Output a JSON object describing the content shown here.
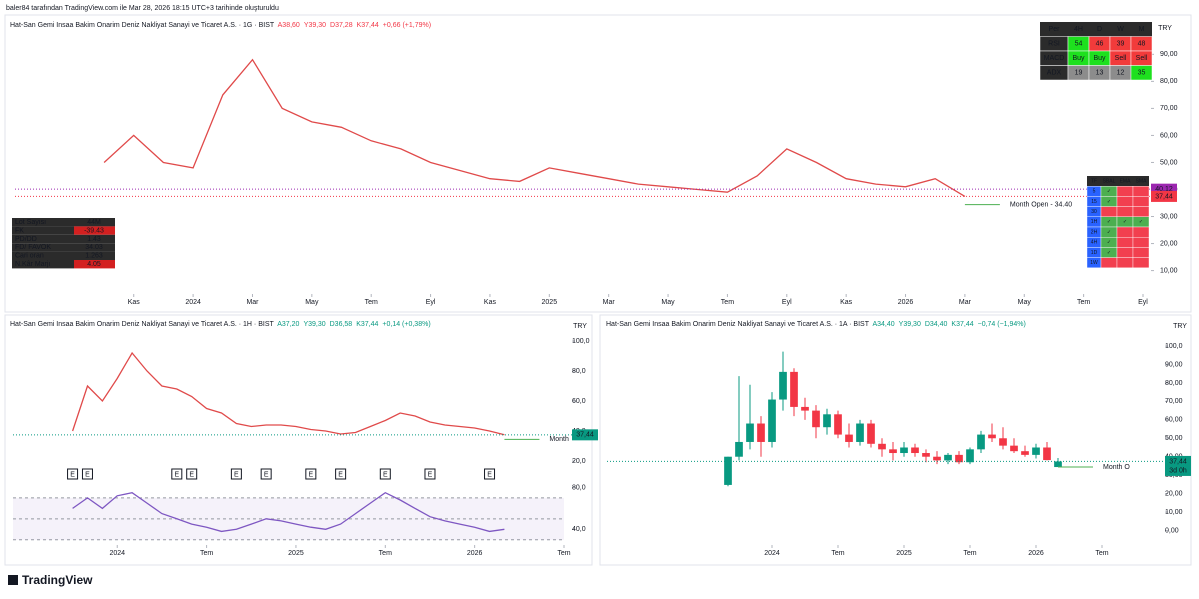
{
  "header": "baler84 tarafından TradingView.com ile Mar 28, 2026 18:15 UTC+3 tarihinde oluşturuldu",
  "footer": "TradingView",
  "indicator_table": {
    "header": [
      "Per",
      "4H",
      "D",
      "W",
      "M"
    ],
    "rows": [
      [
        "RSI",
        "54",
        "46",
        "39",
        "48"
      ],
      [
        "MACD",
        "Buy",
        "Buy",
        "Sell",
        "Sell"
      ],
      [
        "ADX",
        "19",
        "13",
        "12",
        "35"
      ]
    ],
    "cell_colors": [
      [
        "#2b2b2b",
        "#1ee01e",
        "#f23b3b",
        "#f23b3b",
        "#f23b3b"
      ],
      [
        "#2b2b2b",
        "#1ee01e",
        "#1ee01e",
        "#f23b3b",
        "#f23b3b"
      ],
      [
        "#2b2b2b",
        "#8c8c8c",
        "#8c8c8c",
        "#8c8c8c",
        "#1ee01e"
      ]
    ]
  },
  "trend_table": {
    "header": [
      "TF",
      "SBAL",
      "EMA",
      "SMA"
    ],
    "rows": [
      [
        "5",
        "✓",
        "",
        ""
      ],
      [
        "15",
        "✓",
        "",
        ""
      ],
      [
        "30",
        "",
        "",
        ""
      ],
      [
        "1H",
        "✓",
        "✓",
        "✓"
      ],
      [
        "2H",
        "✓",
        "",
        ""
      ],
      [
        "4H",
        "✓",
        "",
        ""
      ],
      [
        "1D",
        "✓",
        "",
        ""
      ],
      [
        "1W",
        "",
        "",
        ""
      ]
    ]
  },
  "fundamentals_table": {
    "rows": [
      [
        "Lot Sayısı",
        "44M"
      ],
      [
        "FK",
        "-39.43"
      ],
      [
        "PD/DD",
        "1.43"
      ],
      [
        "FD/ FAVOK",
        "34.03"
      ],
      [
        "Cari oran",
        "1.263"
      ],
      [
        "N.Kâr Marjı",
        "4.05"
      ]
    ],
    "value_backgrounds": [
      "#2b2b2b",
      "#d32020",
      "#2b2b2b",
      "#2b2b2b",
      "#2b2b2b",
      "#d32020"
    ]
  },
  "chart_data": [
    {
      "type": "line",
      "title": "Hat-San Gemi Insaa Bakim Onarim Deniz Nakliyat Sanayi ve Ticaret A.S. · 1G · BIST",
      "ohlc": [
        "A38,60",
        "Y39,30",
        "D37,28",
        "K37,44",
        "+0,66 (+1,79%)"
      ],
      "ohlc_color": "#f23645",
      "currency": "TRY",
      "color": "#e04a4a",
      "x": [
        "2023-10",
        "2023-11",
        "2023-12",
        "2024-01",
        "2024-02",
        "2024-03",
        "2024-04",
        "2024-05",
        "2024-06",
        "2024-07",
        "2024-08",
        "2024-09",
        "2024-10",
        "2024-11",
        "2024-12",
        "2025-01",
        "2025-02",
        "2025-03",
        "2025-04",
        "2025-05",
        "2025-06",
        "2025-07",
        "2025-08",
        "2025-09",
        "2025-10",
        "2025-11",
        "2025-12",
        "2026-01",
        "2026-02",
        "2026-03"
      ],
      "values": [
        50,
        60,
        50,
        48,
        75,
        88,
        70,
        65,
        63,
        58,
        55,
        50,
        47,
        44,
        43,
        48,
        46,
        44,
        42,
        41,
        40,
        39,
        45,
        55,
        50,
        44,
        42,
        41,
        44,
        37.44
      ],
      "xlim": [
        "2023-07",
        "2026-09"
      ],
      "ylim": [
        8,
        99
      ],
      "xticks": [
        {
          "value": "2023-11",
          "label": "Kas"
        },
        {
          "value": "2024-01",
          "label": "2024"
        },
        {
          "value": "2024-03",
          "label": "Mar"
        },
        {
          "value": "2024-05",
          "label": "May"
        },
        {
          "value": "2024-07",
          "label": "Tem"
        },
        {
          "value": "2024-09",
          "label": "Eyl"
        },
        {
          "value": "2024-11",
          "label": "Kas"
        },
        {
          "value": "2025-01",
          "label": "2025"
        },
        {
          "value": "2025-03",
          "label": "Mar"
        },
        {
          "value": "2025-05",
          "label": "May"
        },
        {
          "value": "2025-07",
          "label": "Tem"
        },
        {
          "value": "2025-09",
          "label": "Eyl"
        },
        {
          "value": "2025-11",
          "label": "Kas"
        },
        {
          "value": "2026-01",
          "label": "2026"
        },
        {
          "value": "2026-03",
          "label": "Mar"
        },
        {
          "value": "2026-05",
          "label": "May"
        },
        {
          "value": "2026-07",
          "label": "Tem"
        },
        {
          "value": "2026-09",
          "label": "Eyl"
        }
      ],
      "yticks": [
        {
          "value": 10,
          "label": "10,00"
        },
        {
          "value": 20,
          "label": "20,00"
        },
        {
          "value": 30,
          "label": "30,00"
        },
        {
          "value": 40,
          "label": "40,00"
        },
        {
          "value": 50,
          "label": "50,00"
        },
        {
          "value": 60,
          "label": "60,00"
        },
        {
          "value": 70,
          "label": "70,00"
        },
        {
          "value": 80,
          "label": "80,00"
        },
        {
          "value": 90,
          "label": "90,00"
        }
      ],
      "month_open": {
        "value": 34.4,
        "label": "Month Open - 34.40",
        "x": "2026-03"
      },
      "price_labels": [
        {
          "value": 40.12,
          "label": "40,12",
          "color": "#9c27b0"
        },
        {
          "value": 37.44,
          "label": "37,44",
          "color": "#f23645"
        }
      ]
    },
    {
      "type": "line",
      "title": "Hat-San Gemi Insaa Bakim Onarim Deniz Nakliyat Sanayi ve Ticaret A.S. · 1H · BIST",
      "ohlc": [
        "A37,20",
        "Y39,30",
        "D36,58",
        "K37,44",
        "+0,14 (+0,38%)"
      ],
      "ohlc_color": "#089981",
      "currency": "TRY",
      "color": "#e04a4a",
      "x": [
        "2023-10",
        "2023-11",
        "2023-12",
        "2024-01",
        "2024-02",
        "2024-03",
        "2024-04",
        "2024-05",
        "2024-06",
        "2024-07",
        "2024-08",
        "2024-09",
        "2024-10",
        "2024-11",
        "2024-12",
        "2025-01",
        "2025-02",
        "2025-03",
        "2025-04",
        "2025-05",
        "2025-06",
        "2025-07",
        "2025-08",
        "2025-09",
        "2025-10",
        "2025-11",
        "2025-12",
        "2026-01",
        "2026-02",
        "2026-03"
      ],
      "values": [
        40,
        70,
        60,
        75,
        92,
        80,
        70,
        68,
        63,
        55,
        52,
        45,
        43,
        44,
        44,
        43,
        41,
        40,
        38,
        39,
        43,
        47,
        52,
        50,
        46,
        44,
        43,
        42,
        40,
        37.44
      ],
      "xlim": [
        "2023-06",
        "2026-07"
      ],
      "ylim": [
        14,
        104
      ],
      "xticks": [
        {
          "value": "2024-01",
          "label": "2024"
        },
        {
          "value": "2024-07",
          "label": "Tem"
        },
        {
          "value": "2025-01",
          "label": "2025"
        },
        {
          "value": "2025-07",
          "label": "Tem"
        },
        {
          "value": "2026-01",
          "label": "2026"
        },
        {
          "value": "2026-07",
          "label": "Tem"
        }
      ],
      "yticks": [
        {
          "value": 20,
          "label": "20,0"
        },
        {
          "value": 40,
          "label": "40,0"
        },
        {
          "value": 60,
          "label": "60,0"
        },
        {
          "value": 80,
          "label": "80,0"
        },
        {
          "value": 100,
          "label": "100,0"
        }
      ],
      "month_open": {
        "value": 34.4,
        "label": "Month",
        "x": "2026-03"
      },
      "price_labels": [
        {
          "value": 37.44,
          "label": "37,44",
          "color": "#089981"
        }
      ],
      "events": {
        "label": "E",
        "x": [
          "2023-10",
          "2023-11",
          "2024-05",
          "2024-06",
          "2024-09",
          "2024-11",
          "2025-02",
          "2025-04",
          "2025-07",
          "2025-10",
          "2026-02"
        ]
      }
    },
    {
      "type": "line",
      "color": "#7e57c2",
      "x": [
        "2023-10",
        "2023-11",
        "2023-12",
        "2024-01",
        "2024-02",
        "2024-03",
        "2024-04",
        "2024-05",
        "2024-06",
        "2024-07",
        "2024-08",
        "2024-09",
        "2024-10",
        "2024-11",
        "2024-12",
        "2025-01",
        "2025-02",
        "2025-03",
        "2025-04",
        "2025-05",
        "2025-06",
        "2025-07",
        "2025-08",
        "2025-09",
        "2025-10",
        "2025-11",
        "2025-12",
        "2026-01",
        "2026-02",
        "2026-03"
      ],
      "values": [
        60,
        70,
        60,
        72,
        75,
        65,
        55,
        50,
        45,
        42,
        38,
        40,
        45,
        50,
        48,
        45,
        42,
        40,
        45,
        55,
        65,
        75,
        68,
        60,
        52,
        48,
        45,
        42,
        38,
        40
      ],
      "xlim": [
        "2023-06",
        "2026-07"
      ],
      "ylim": [
        25,
        89
      ],
      "yticks": [
        {
          "value": 40,
          "label": "40,0"
        },
        {
          "value": 80,
          "label": "80,0"
        }
      ],
      "levels": [
        70,
        50,
        30
      ]
    },
    {
      "type": "candlestick",
      "title": "Hat-San Gemi Insaa Bakim Onarim Deniz Nakliyat Sanayi ve Ticaret A.S. · 1A · BIST",
      "ohlc": [
        "A34,40",
        "Y39,30",
        "D34,40",
        "K37,44",
        "−0,74 (−1,94%)"
      ],
      "ohlc_color": "#089981",
      "currency": "TRY",
      "up_color": "#089981",
      "down_color": "#f23645",
      "x": [
        "2023-09",
        "2023-10",
        "2023-11",
        "2023-12",
        "2024-01",
        "2024-02",
        "2024-03",
        "2024-04",
        "2024-05",
        "2024-06",
        "2024-07",
        "2024-08",
        "2024-09",
        "2024-10",
        "2024-11",
        "2024-12",
        "2025-01",
        "2025-02",
        "2025-03",
        "2025-04",
        "2025-05",
        "2025-06",
        "2025-07",
        "2025-08",
        "2025-09",
        "2025-10",
        "2025-11",
        "2025-12",
        "2026-01",
        "2026-02",
        "2026-03"
      ],
      "open": [
        24.7,
        40,
        48,
        58,
        48,
        71,
        86,
        67,
        65,
        56,
        63,
        52,
        48,
        58,
        47,
        44,
        42,
        45,
        42,
        40,
        38,
        41,
        37,
        44,
        52,
        50,
        46,
        43,
        41,
        45,
        34.4
      ],
      "high": [
        40,
        83.7,
        79,
        62,
        75,
        97,
        88,
        72,
        68,
        66,
        65,
        58,
        60,
        60,
        50,
        48,
        48,
        47,
        44,
        43,
        42,
        43,
        45,
        54,
        58,
        56,
        50,
        46,
        47,
        48,
        39.3
      ],
      "low": [
        24,
        38,
        44,
        40,
        45,
        65,
        62,
        60,
        50,
        52,
        50,
        45,
        46,
        45,
        40,
        38,
        40,
        40,
        37,
        36,
        36,
        36,
        36,
        42,
        48,
        44,
        42,
        40,
        39,
        38,
        34.4
      ],
      "close": [
        40,
        48,
        58,
        48,
        71,
        86,
        67,
        65,
        56,
        63,
        52,
        48,
        58,
        47,
        44,
        42,
        45,
        42,
        40,
        38,
        41,
        37,
        44,
        52,
        50,
        46,
        43,
        41,
        45,
        38.18,
        37.44
      ],
      "xlim": [
        "2022-10",
        "2026-12"
      ],
      "ylim": [
        -9.5,
        106
      ],
      "xticks": [
        {
          "value": "2024-01",
          "label": "2024"
        },
        {
          "value": "2024-07",
          "label": "Tem"
        },
        {
          "value": "2025-01",
          "label": "2025"
        },
        {
          "value": "2025-07",
          "label": "Tem"
        },
        {
          "value": "2026-01",
          "label": "2026"
        },
        {
          "value": "2026-07",
          "label": "Tem"
        }
      ],
      "yticks": [
        {
          "value": 0,
          "label": "0,00"
        },
        {
          "value": 10,
          "label": "10,00"
        },
        {
          "value": 20,
          "label": "20,00"
        },
        {
          "value": 30,
          "label": "30,00"
        },
        {
          "value": 40,
          "label": "40,00"
        },
        {
          "value": 50,
          "label": "50,00"
        },
        {
          "value": 60,
          "label": "60,00"
        },
        {
          "value": 70,
          "label": "70,00"
        },
        {
          "value": 80,
          "label": "80,00"
        },
        {
          "value": 90,
          "label": "90,00"
        },
        {
          "value": 100,
          "label": "100,0"
        }
      ],
      "month_open": {
        "value": 34.4,
        "label": "Month O",
        "x": "2026-03"
      },
      "price_labels": [
        {
          "value": 37.44,
          "label": "37,44",
          "sublabel": "3d 0h",
          "color": "#089981"
        }
      ]
    }
  ]
}
